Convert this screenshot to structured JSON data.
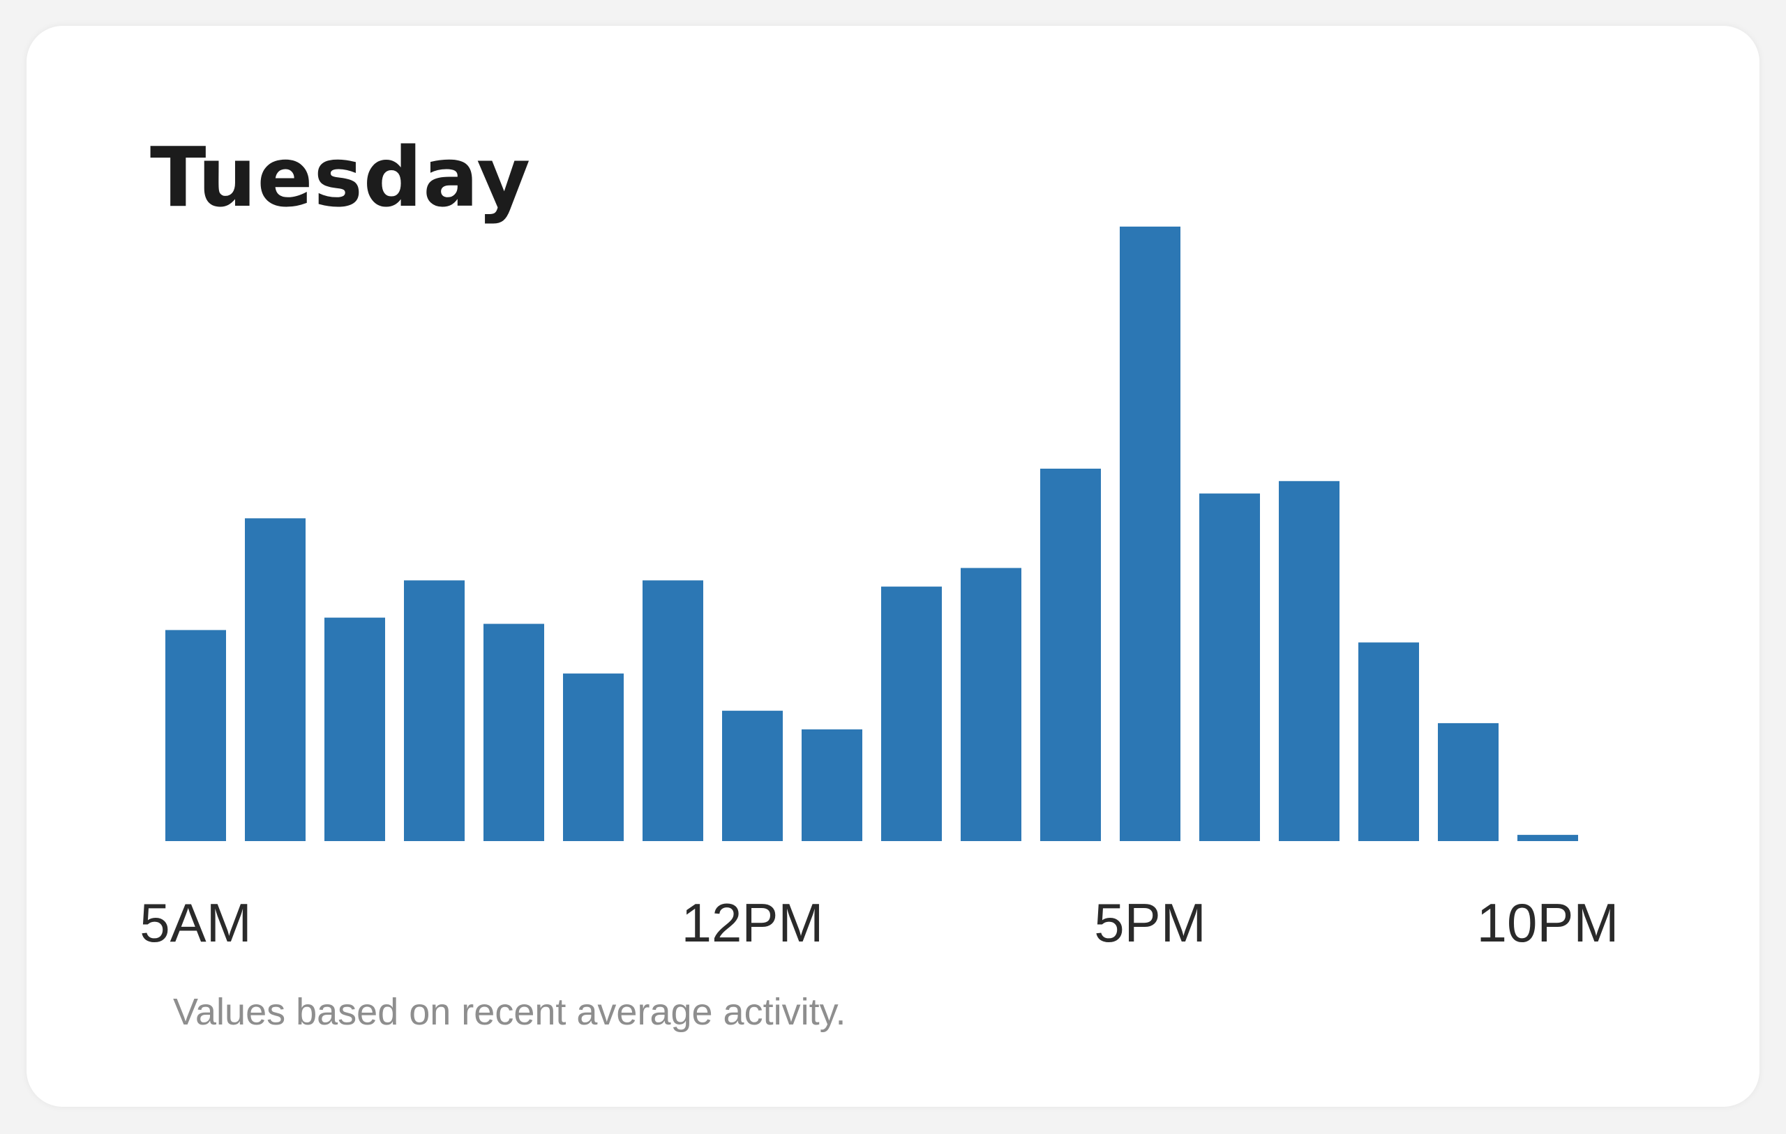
{
  "card": {
    "title": "Tuesday",
    "footnote": "Values based on recent average activity."
  },
  "colors": {
    "bar": "#2c77b4",
    "background": "#ffffff",
    "title": "#1c1c1c",
    "tick": "#2a2a2a",
    "footnote": "#8e8e8e"
  },
  "chart_data": {
    "type": "bar",
    "title": "Tuesday",
    "xlabel": "",
    "ylabel": "",
    "categories": [
      "5AM",
      "6AM",
      "7AM",
      "8AM",
      "9AM",
      "10AM",
      "11AM",
      "12PM",
      "1PM",
      "2PM",
      "3PM",
      "4PM",
      "5PM",
      "6PM",
      "7PM",
      "8PM",
      "9PM",
      "10PM"
    ],
    "values": [
      34,
      52,
      36,
      42,
      35,
      27,
      42,
      21,
      18,
      41,
      44,
      60,
      99,
      56,
      58,
      32,
      19,
      1
    ],
    "ylim": [
      0,
      100
    ],
    "tick_labels": [
      {
        "category": "5AM",
        "text": "5AM"
      },
      {
        "category": "12PM",
        "text": "12PM"
      },
      {
        "category": "5PM",
        "text": "5PM"
      },
      {
        "category": "10PM",
        "text": "10PM"
      }
    ],
    "grid": false,
    "legend": "none"
  }
}
